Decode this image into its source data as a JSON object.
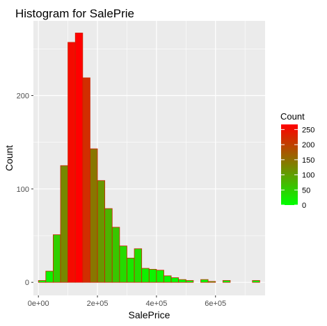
{
  "chart_data": {
    "type": "bar",
    "title": "Histogram for SalePrie",
    "xlabel": "SalePrice",
    "ylabel": "Count",
    "bin_width": 25000,
    "bins": [
      {
        "x": 12500,
        "count": 2
      },
      {
        "x": 37500,
        "count": 12
      },
      {
        "x": 62500,
        "count": 51
      },
      {
        "x": 87500,
        "count": 125
      },
      {
        "x": 112500,
        "count": 257
      },
      {
        "x": 137500,
        "count": 267
      },
      {
        "x": 162500,
        "count": 219
      },
      {
        "x": 187500,
        "count": 143
      },
      {
        "x": 212500,
        "count": 109
      },
      {
        "x": 237500,
        "count": 79
      },
      {
        "x": 262500,
        "count": 59
      },
      {
        "x": 287500,
        "count": 39
      },
      {
        "x": 312500,
        "count": 26
      },
      {
        "x": 337500,
        "count": 36
      },
      {
        "x": 362500,
        "count": 15
      },
      {
        "x": 387500,
        "count": 14
      },
      {
        "x": 412500,
        "count": 13
      },
      {
        "x": 437500,
        "count": 7
      },
      {
        "x": 462500,
        "count": 5
      },
      {
        "x": 487500,
        "count": 3
      },
      {
        "x": 512500,
        "count": 2
      },
      {
        "x": 537500,
        "count": 0
      },
      {
        "x": 562500,
        "count": 3
      },
      {
        "x": 587500,
        "count": 1
      },
      {
        "x": 612500,
        "count": 0
      },
      {
        "x": 637500,
        "count": 2
      },
      {
        "x": 662500,
        "count": 0
      },
      {
        "x": 687500,
        "count": 0
      },
      {
        "x": 712500,
        "count": 0
      },
      {
        "x": 737500,
        "count": 2
      }
    ],
    "xlim": [
      -17000,
      768000
    ],
    "ylim": [
      -14,
      280
    ],
    "x_ticks": [
      {
        "value": 0,
        "label": "0e+00"
      },
      {
        "value": 200000,
        "label": "2e+05"
      },
      {
        "value": 400000,
        "label": "4e+05"
      },
      {
        "value": 600000,
        "label": "6e+05"
      }
    ],
    "y_ticks": [
      {
        "value": 0,
        "label": "0"
      },
      {
        "value": 100,
        "label": "100"
      },
      {
        "value": 200,
        "label": "200"
      }
    ],
    "grid": true,
    "panel_background": "#ebebeb",
    "grid_color": "#ffffff",
    "bar_outline_color": "#cc2200",
    "fill_low_color": "#00ff00",
    "fill_high_color": "#ff0000",
    "legend": {
      "title": "Count",
      "position": "right",
      "range": [
        0,
        267
      ],
      "ticks": [
        {
          "value": 0,
          "label": "0"
        },
        {
          "value": 50,
          "label": "50"
        },
        {
          "value": 100,
          "label": "100"
        },
        {
          "value": 150,
          "label": "150"
        },
        {
          "value": 200,
          "label": "200"
        },
        {
          "value": 250,
          "label": "250"
        }
      ]
    }
  }
}
